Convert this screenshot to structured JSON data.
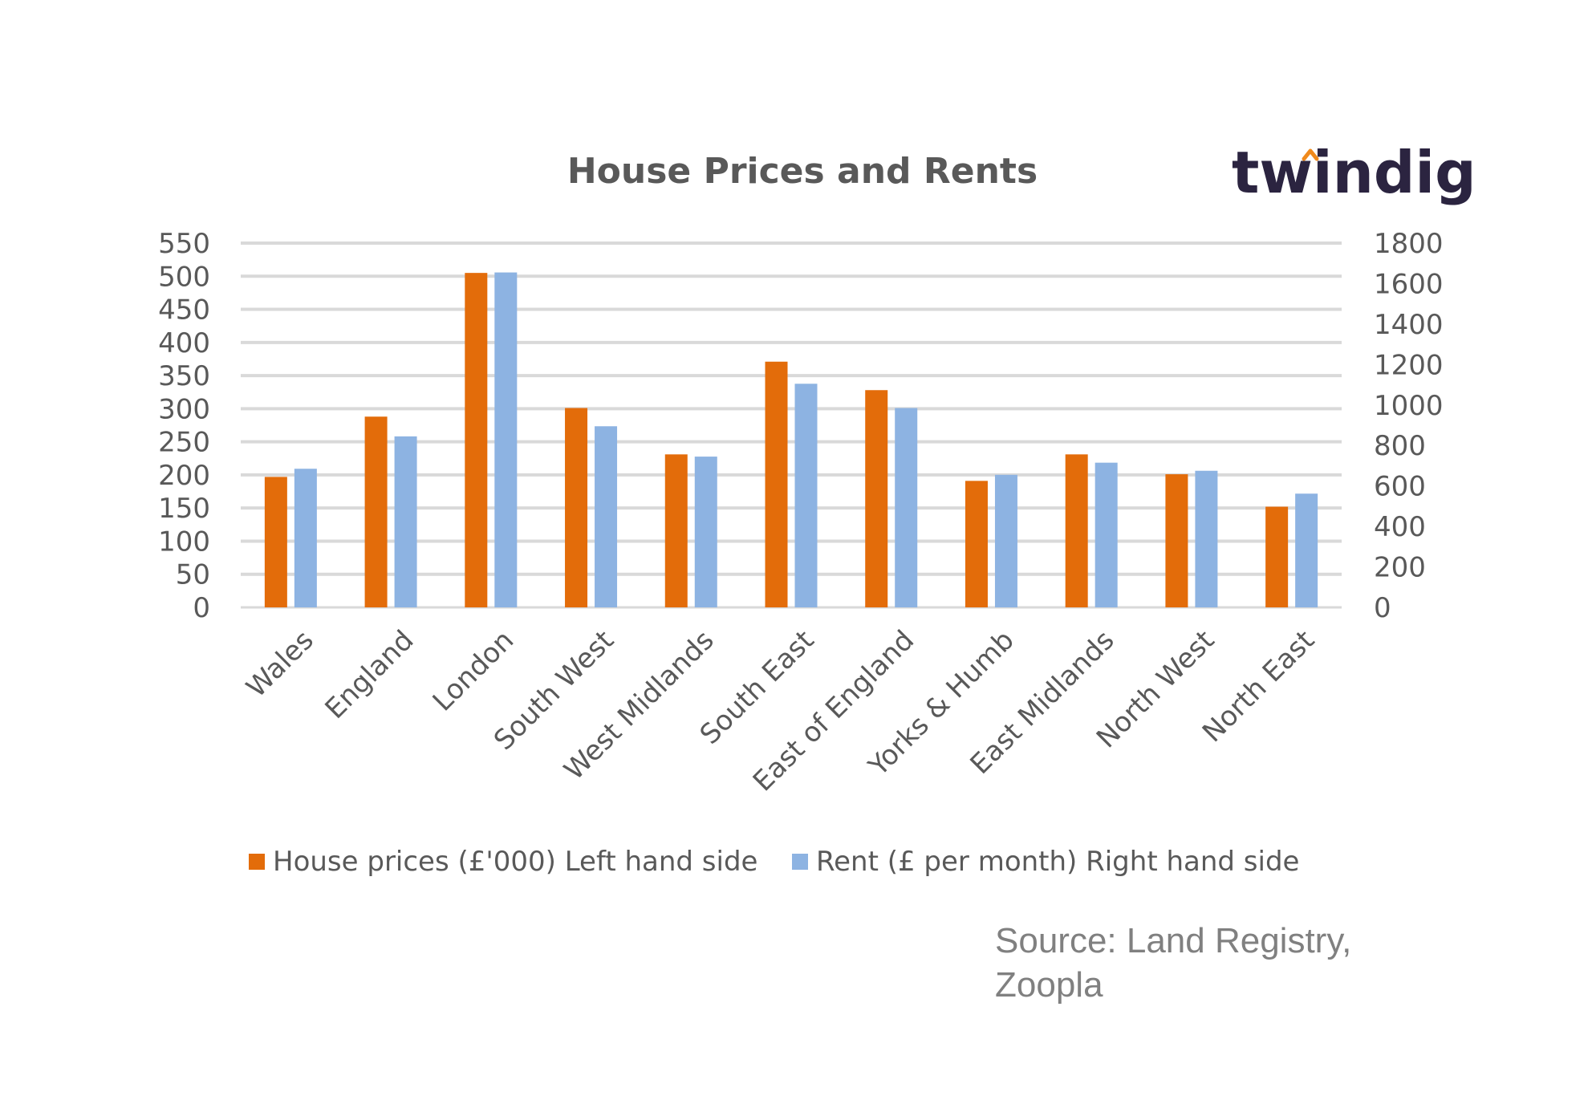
{
  "logo": {
    "text": "twindig",
    "dot_color": "#f08a1c",
    "text_color": "#2b2440"
  },
  "source": {
    "line1": "Source: Land Registry,",
    "line2": "Zoopla"
  },
  "chart_data": {
    "type": "bar",
    "title": "House Prices and Rents",
    "categories": [
      "Wales",
      "England",
      "London",
      "South West",
      "West Midlands",
      "South East",
      "East of England",
      "Yorks & Humb",
      "East Midlands",
      "North West",
      "North East"
    ],
    "series": [
      {
        "name": "House prices (£'000) Left hand side",
        "axis": "left",
        "color": "#e36c0a",
        "values": [
          197,
          288,
          505,
          301,
          231,
          371,
          328,
          191,
          231,
          201,
          152
        ]
      },
      {
        "name": "Rent (£ per month) Right hand side",
        "axis": "right",
        "color": "#8db3e2",
        "values": [
          685,
          845,
          1655,
          895,
          745,
          1105,
          985,
          655,
          715,
          675,
          562
        ]
      }
    ],
    "y_left": {
      "min": 0,
      "max": 550,
      "ticks": [
        "0",
        "50",
        "100",
        "150",
        "200",
        "250",
        "300",
        "350",
        "400",
        "450",
        "500",
        "550"
      ]
    },
    "y_right": {
      "min": 0,
      "max": 1800,
      "ticks": [
        "0",
        "200",
        "400",
        "600",
        "800",
        "1000",
        "1200",
        "1400",
        "1600",
        "1800"
      ]
    },
    "grid": true,
    "legend_position": "bottom",
    "grid_color": "#d9d9d9"
  }
}
